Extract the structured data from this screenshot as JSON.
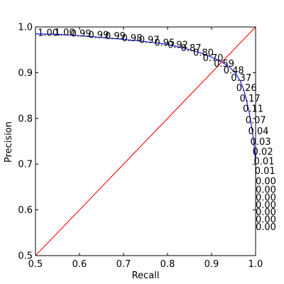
{
  "chart_data": {
    "type": "line",
    "title": "",
    "xlabel": "Recall",
    "ylabel": "Precision",
    "xlim": [
      0.5,
      1.0
    ],
    "ylim": [
      0.5,
      1.0
    ],
    "xticks": [
      0.5,
      0.6,
      0.7,
      0.8,
      0.9,
      1.0
    ],
    "yticks": [
      0.5,
      0.6,
      0.7,
      0.8,
      0.9,
      1.0
    ],
    "xtick_labels": [
      "0.5",
      "0.6",
      "0.7",
      "0.8",
      "0.9",
      "1.0"
    ],
    "ytick_labels": [
      "0.5",
      "0.6",
      "0.7",
      "0.8",
      "0.9",
      "1.0"
    ],
    "grid": false,
    "series": [
      {
        "color": "#0000ff",
        "x": [
          0.5,
          0.55,
          0.6,
          0.65,
          0.7,
          0.75,
          0.8,
          0.84,
          0.88,
          0.9,
          0.92,
          0.94,
          0.955,
          0.965,
          0.972,
          0.978,
          0.984,
          0.988,
          0.992,
          0.995,
          0.997,
          0.999,
          1.0,
          1.0
        ],
        "y": [
          0.985,
          0.984,
          0.981,
          0.977,
          0.973,
          0.968,
          0.962,
          0.953,
          0.942,
          0.934,
          0.925,
          0.913,
          0.898,
          0.882,
          0.865,
          0.845,
          0.82,
          0.8,
          0.775,
          0.755,
          0.735,
          0.715,
          0.7,
          0.6
        ]
      },
      {
        "color": "#ff0000",
        "x": [
          0.5,
          1.0
        ],
        "y": [
          0.5,
          1.0
        ]
      }
    ],
    "annotations": [
      {
        "text": "1.00",
        "x": 0.505,
        "y": 0.988
      },
      {
        "text": "1.00",
        "x": 0.543,
        "y": 0.989
      },
      {
        "text": "0.99",
        "x": 0.58,
        "y": 0.987
      },
      {
        "text": "0.99",
        "x": 0.62,
        "y": 0.984
      },
      {
        "text": "0.99",
        "x": 0.658,
        "y": 0.981
      },
      {
        "text": "0.98",
        "x": 0.696,
        "y": 0.977
      },
      {
        "text": "0.97",
        "x": 0.735,
        "y": 0.973
      },
      {
        "text": "0.95",
        "x": 0.77,
        "y": 0.967
      },
      {
        "text": "0.92",
        "x": 0.8,
        "y": 0.962
      },
      {
        "text": "0.87",
        "x": 0.83,
        "y": 0.955
      },
      {
        "text": "0.80",
        "x": 0.858,
        "y": 0.945
      },
      {
        "text": "0.70",
        "x": 0.88,
        "y": 0.933
      },
      {
        "text": "0.59",
        "x": 0.905,
        "y": 0.921
      },
      {
        "text": "0.48",
        "x": 0.927,
        "y": 0.906
      },
      {
        "text": "0.37",
        "x": 0.944,
        "y": 0.89
      },
      {
        "text": "0.26",
        "x": 0.956,
        "y": 0.868
      },
      {
        "text": "0.17",
        "x": 0.964,
        "y": 0.845
      },
      {
        "text": "0.11",
        "x": 0.971,
        "y": 0.822
      },
      {
        "text": "0.07",
        "x": 0.977,
        "y": 0.797
      },
      {
        "text": "0.04",
        "x": 0.983,
        "y": 0.773
      },
      {
        "text": "0.03",
        "x": 0.988,
        "y": 0.75
      },
      {
        "text": "0.02",
        "x": 0.993,
        "y": 0.728
      },
      {
        "text": "0.01",
        "x": 0.996,
        "y": 0.707
      },
      {
        "text": "0.01",
        "x": 0.998,
        "y": 0.686
      },
      {
        "text": "0.00",
        "x": 1.0,
        "y": 0.664
      },
      {
        "text": "0.00",
        "x": 1.0,
        "y": 0.645
      },
      {
        "text": "0.00",
        "x": 1.0,
        "y": 0.628
      },
      {
        "text": "0.00",
        "x": 1.0,
        "y": 0.612
      },
      {
        "text": "0.00",
        "x": 1.0,
        "y": 0.596
      },
      {
        "text": "0.00",
        "x": 1.0,
        "y": 0.58
      },
      {
        "text": "0.00",
        "x": 1.0,
        "y": 0.564
      }
    ]
  }
}
